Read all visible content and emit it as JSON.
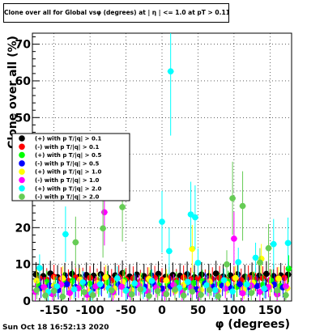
{
  "title": "Clone  over all for Global vsφ (degrees) at | η | <= 1.0 at pT > 0.11",
  "footer": "Sun Oct 18 16:52:13 2020",
  "chart_data": {
    "type": "scatter",
    "title": "Clone  over all for Global vsφ (degrees) at | η | <= 1.0 at pT > 0.11",
    "xlabel": "φ (degrees)",
    "ylabel": "Clone  over all (%)",
    "xlim": [
      -180,
      180
    ],
    "ylim": [
      0,
      73
    ],
    "xticks": [
      -150,
      -100,
      -50,
      0,
      50,
      100,
      150
    ],
    "yticks": [
      0,
      10,
      20,
      30,
      40,
      50,
      60,
      70
    ],
    "grid": true,
    "legend_position": "middle-left",
    "series": [
      {
        "name": "(+) with p T/|q| > 0.1",
        "color": "#000000",
        "points": [
          [
            -175,
            7.2
          ],
          [
            -165,
            6.8
          ],
          [
            -155,
            7.5
          ],
          [
            -145,
            6.5
          ],
          [
            -135,
            7.0
          ],
          [
            -125,
            7.4
          ],
          [
            -115,
            6.6
          ],
          [
            -105,
            7.1
          ],
          [
            -95,
            6.9
          ],
          [
            -85,
            7.3
          ],
          [
            -75,
            6.4
          ],
          [
            -65,
            7.0
          ],
          [
            -55,
            7.6
          ],
          [
            -45,
            6.7
          ],
          [
            -35,
            7.2
          ],
          [
            -25,
            6.8
          ],
          [
            -15,
            7.0
          ],
          [
            -5,
            7.4
          ],
          [
            5,
            6.6
          ],
          [
            15,
            7.1
          ],
          [
            25,
            6.9
          ],
          [
            35,
            7.3
          ],
          [
            45,
            6.5
          ],
          [
            55,
            7.2
          ],
          [
            65,
            6.8
          ],
          [
            75,
            7.5
          ],
          [
            85,
            6.7
          ],
          [
            95,
            7.0
          ],
          [
            105,
            7.3
          ],
          [
            115,
            6.6
          ],
          [
            125,
            7.1
          ],
          [
            135,
            6.9
          ],
          [
            145,
            7.4
          ],
          [
            155,
            6.8
          ],
          [
            165,
            7.0
          ],
          [
            175,
            7.2
          ]
        ]
      },
      {
        "name": "(-) with p T/|q| > 0.1",
        "color": "#ff0000",
        "points": [
          [
            -170,
            6.2
          ],
          [
            -160,
            5.8
          ],
          [
            -150,
            6.6
          ],
          [
            -140,
            6.0
          ],
          [
            -130,
            5.5
          ],
          [
            -120,
            6.4
          ],
          [
            -110,
            5.9
          ],
          [
            -100,
            6.3
          ],
          [
            -90,
            5.7
          ],
          [
            -80,
            6.1
          ],
          [
            -70,
            5.6
          ],
          [
            -60,
            6.5
          ],
          [
            -50,
            5.9
          ],
          [
            -40,
            6.2
          ],
          [
            -30,
            5.4
          ],
          [
            -20,
            6.0
          ],
          [
            -10,
            6.3
          ],
          [
            0,
            5.8
          ],
          [
            10,
            6.1
          ],
          [
            20,
            5.6
          ],
          [
            30,
            6.4
          ],
          [
            40,
            5.9
          ],
          [
            50,
            6.2
          ],
          [
            60,
            5.5
          ],
          [
            70,
            6.0
          ],
          [
            80,
            6.3
          ],
          [
            90,
            5.8
          ],
          [
            100,
            6.1
          ],
          [
            110,
            5.7
          ],
          [
            120,
            6.4
          ],
          [
            130,
            5.9
          ],
          [
            140,
            6.2
          ],
          [
            150,
            5.6
          ],
          [
            160,
            6.0
          ],
          [
            170,
            6.3
          ]
        ]
      },
      {
        "name": "(+) with p T/|q| > 0.5",
        "color": "#00ff00",
        "points": [
          [
            -172,
            4.5
          ],
          [
            -160,
            5.2
          ],
          [
            -148,
            3.8
          ],
          [
            -136,
            4.9
          ],
          [
            -124,
            5.5
          ],
          [
            -112,
            4.1
          ],
          [
            -100,
            4.7
          ],
          [
            -88,
            3.9
          ],
          [
            -76,
            5.1
          ],
          [
            -64,
            4.4
          ],
          [
            -52,
            5.6
          ],
          [
            -40,
            4.0
          ],
          [
            -28,
            4.8
          ],
          [
            -16,
            5.3
          ],
          [
            -4,
            4.2
          ],
          [
            8,
            4.6
          ],
          [
            20,
            5.0
          ],
          [
            32,
            3.7
          ],
          [
            44,
            4.9
          ],
          [
            56,
            5.4
          ],
          [
            68,
            4.3
          ],
          [
            80,
            4.7
          ],
          [
            92,
            5.2
          ],
          [
            104,
            3.9
          ],
          [
            116,
            4.6
          ],
          [
            128,
            5.0
          ],
          [
            140,
            4.4
          ],
          [
            152,
            5.5
          ],
          [
            164,
            4.1
          ],
          [
            176,
            8.8
          ]
        ]
      },
      {
        "name": "(-) with p T/|q| > 0.5",
        "color": "#0000ff",
        "points": [
          [
            -168,
            3.5
          ],
          [
            -156,
            4.2
          ],
          [
            -144,
            3.0
          ],
          [
            -132,
            4.6
          ],
          [
            -120,
            3.8
          ],
          [
            -108,
            4.9
          ],
          [
            -96,
            3.3
          ],
          [
            -84,
            4.1
          ],
          [
            -72,
            3.7
          ],
          [
            -60,
            4.5
          ],
          [
            -48,
            3.1
          ],
          [
            -36,
            4.3
          ],
          [
            -24,
            3.9
          ],
          [
            -12,
            4.7
          ],
          [
            0,
            3.4
          ],
          [
            12,
            4.0
          ],
          [
            24,
            3.6
          ],
          [
            36,
            4.4
          ],
          [
            48,
            3.2
          ],
          [
            60,
            4.8
          ],
          [
            72,
            3.9
          ],
          [
            84,
            4.2
          ],
          [
            96,
            3.5
          ],
          [
            108,
            4.6
          ],
          [
            120,
            3.8
          ],
          [
            132,
            4.1
          ],
          [
            144,
            3.3
          ],
          [
            156,
            4.5
          ],
          [
            168,
            3.7
          ]
        ]
      },
      {
        "name": "(+) with p T/|q| > 1.0",
        "color": "#ffff00",
        "points": [
          [
            -174,
            5.5
          ],
          [
            -162,
            2.8
          ],
          [
            -150,
            4.2
          ],
          [
            -138,
            6.2
          ],
          [
            -126,
            3.1
          ],
          [
            -114,
            5.8
          ],
          [
            -102,
            2.6
          ],
          [
            -90,
            4.9
          ],
          [
            -78,
            6.5
          ],
          [
            -66,
            3.4
          ],
          [
            -54,
            5.2
          ],
          [
            -42,
            2.9
          ],
          [
            -30,
            4.6
          ],
          [
            -18,
            6.0
          ],
          [
            -6,
            3.3
          ],
          [
            6,
            5.6
          ],
          [
            18,
            2.7
          ],
          [
            30,
            4.4
          ],
          [
            42,
            14.2
          ],
          [
            54,
            3.0
          ],
          [
            66,
            5.3
          ],
          [
            78,
            2.8
          ],
          [
            90,
            4.7
          ],
          [
            102,
            6.3
          ],
          [
            114,
            3.2
          ],
          [
            126,
            5.0
          ],
          [
            138,
            11.5
          ],
          [
            150,
            4.1
          ],
          [
            162,
            6.1
          ],
          [
            174,
            3.5
          ]
        ]
      },
      {
        "name": "(-) with p T/|q| > 1.0",
        "color": "#ff00ff",
        "points": [
          [
            -176,
            2.5
          ],
          [
            -164,
            3.8
          ],
          [
            -152,
            1.9
          ],
          [
            -140,
            4.5
          ],
          [
            -128,
            2.2
          ],
          [
            -116,
            3.5
          ],
          [
            -104,
            1.7
          ],
          [
            -92,
            4.0
          ],
          [
            -80,
            24.2
          ],
          [
            -68,
            2.4
          ],
          [
            -56,
            3.9
          ],
          [
            -44,
            1.8
          ],
          [
            -32,
            4.3
          ],
          [
            -20,
            2.6
          ],
          [
            -8,
            3.7
          ],
          [
            4,
            2.0
          ],
          [
            16,
            4.4
          ],
          [
            28,
            2.3
          ],
          [
            40,
            3.6
          ],
          [
            52,
            1.9
          ],
          [
            64,
            4.1
          ],
          [
            76,
            2.7
          ],
          [
            88,
            3.4
          ],
          [
            100,
            17.0
          ],
          [
            112,
            2.1
          ],
          [
            124,
            4.2
          ],
          [
            136,
            2.5
          ],
          [
            148,
            3.8
          ],
          [
            160,
            1.8
          ],
          [
            172,
            4.0
          ]
        ]
      },
      {
        "name": "(+) with p T/|q| > 2.0",
        "color": "#00ffff",
        "points": [
          [
            -170,
            9.0
          ],
          [
            -158,
            2.5
          ],
          [
            -146,
            4.0
          ],
          [
            -134,
            18.2
          ],
          [
            -122,
            3.2
          ],
          [
            -110,
            5.1
          ],
          [
            -98,
            2.1
          ],
          [
            -86,
            4.6
          ],
          [
            -74,
            3.5
          ],
          [
            -62,
            6.2
          ],
          [
            -50,
            2.8
          ],
          [
            -38,
            4.8
          ],
          [
            -26,
            3.1
          ],
          [
            -14,
            5.5
          ],
          [
            0,
            21.6
          ],
          [
            10,
            13.6
          ],
          [
            12,
            62.6
          ],
          [
            24,
            3.6
          ],
          [
            36,
            5.2
          ],
          [
            40,
            23.6
          ],
          [
            46,
            22.8
          ],
          [
            50,
            10.4
          ],
          [
            62,
            4.3
          ],
          [
            74,
            3.0
          ],
          [
            86,
            5.7
          ],
          [
            98,
            2.6
          ],
          [
            106,
            10.6
          ],
          [
            118,
            4.5
          ],
          [
            130,
            11.8
          ],
          [
            142,
            3.4
          ],
          [
            155,
            15.5
          ],
          [
            175,
            15.8
          ]
        ]
      },
      {
        "name": "(-) with p T/|q| > 2.0",
        "color": "#66cc55",
        "points": [
          [
            -174,
            3.0
          ],
          [
            -162,
            1.5
          ],
          [
            -150,
            2.8
          ],
          [
            -138,
            1.2
          ],
          [
            -120,
            16.0
          ],
          [
            -108,
            2.4
          ],
          [
            -96,
            1.6
          ],
          [
            -82,
            19.8
          ],
          [
            -70,
            2.9
          ],
          [
            -55,
            25.6
          ],
          [
            -42,
            1.8
          ],
          [
            -30,
            3.2
          ],
          [
            -18,
            1.4
          ],
          [
            -6,
            2.7
          ],
          [
            6,
            1.9
          ],
          [
            18,
            3.1
          ],
          [
            30,
            1.5
          ],
          [
            42,
            2.6
          ],
          [
            54,
            1.7
          ],
          [
            66,
            3.0
          ],
          [
            78,
            1.3
          ],
          [
            90,
            10.0
          ],
          [
            98,
            28.0
          ],
          [
            112,
            25.9
          ],
          [
            124,
            2.2
          ],
          [
            136,
            10.5
          ],
          [
            148,
            14.4
          ],
          [
            160,
            2.9
          ],
          [
            172,
            1.6
          ]
        ]
      }
    ]
  }
}
